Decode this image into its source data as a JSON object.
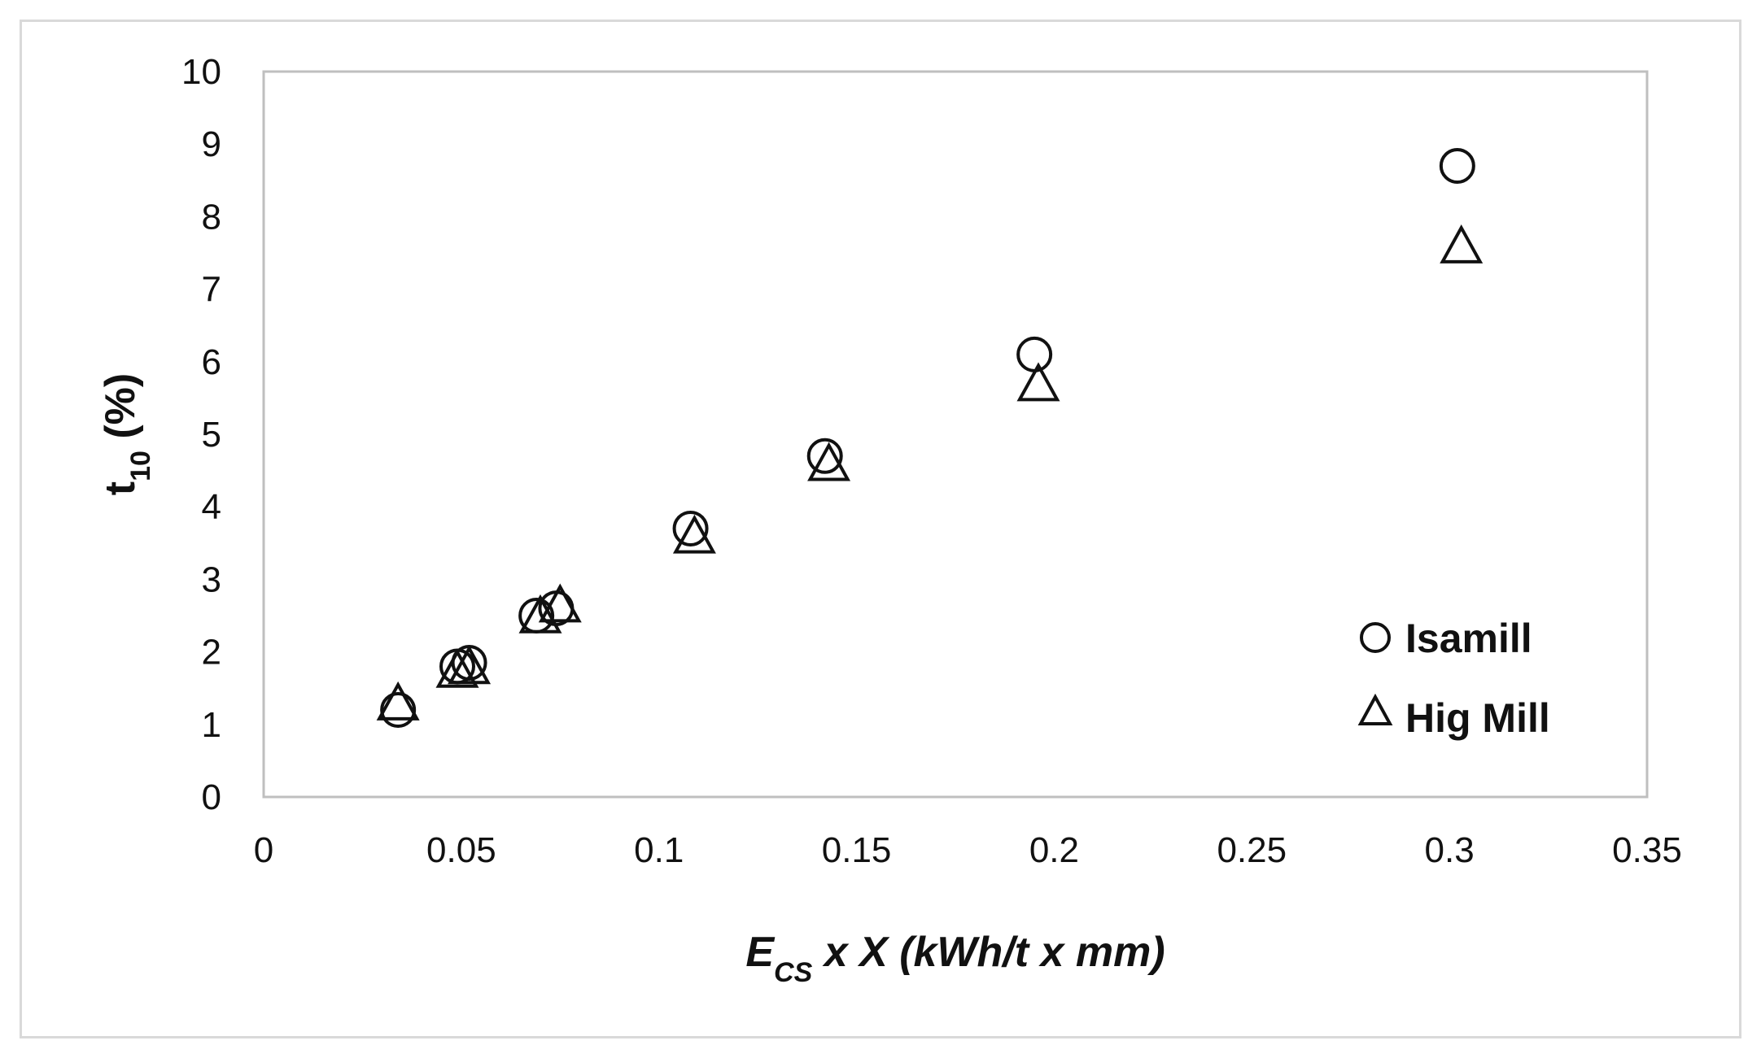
{
  "chart_data": {
    "type": "scatter",
    "xlabel": {
      "main": "E",
      "sub": "CS",
      "rest": " x X (kWh/t x mm)"
    },
    "ylabel": {
      "main": "t",
      "sub": "10",
      "rest": " (%)"
    },
    "xlim": [
      0,
      0.35
    ],
    "ylim": [
      0,
      10
    ],
    "x_ticks": [
      "0",
      "0.05",
      "0.1",
      "0.15",
      "0.2",
      "0.25",
      "0.3",
      "0.35"
    ],
    "y_ticks": [
      "0",
      "1",
      "2",
      "3",
      "4",
      "5",
      "6",
      "7",
      "8",
      "9",
      "10"
    ],
    "grid": false,
    "legend_position": "right",
    "series": [
      {
        "name": "Isamill",
        "marker": "circle",
        "points": [
          [
            0.034,
            1.2
          ],
          [
            0.049,
            1.8
          ],
          [
            0.052,
            1.85
          ],
          [
            0.069,
            2.5
          ],
          [
            0.074,
            2.6
          ],
          [
            0.108,
            3.7
          ],
          [
            0.142,
            4.7
          ],
          [
            0.195,
            6.1
          ],
          [
            0.302,
            8.7
          ]
        ]
      },
      {
        "name": "Hig Mill",
        "marker": "triangle",
        "points": [
          [
            0.034,
            1.3
          ],
          [
            0.049,
            1.75
          ],
          [
            0.052,
            1.8
          ],
          [
            0.07,
            2.5
          ],
          [
            0.075,
            2.65
          ],
          [
            0.109,
            3.6
          ],
          [
            0.143,
            4.6
          ],
          [
            0.196,
            5.7
          ],
          [
            0.303,
            7.6
          ]
        ]
      }
    ]
  }
}
